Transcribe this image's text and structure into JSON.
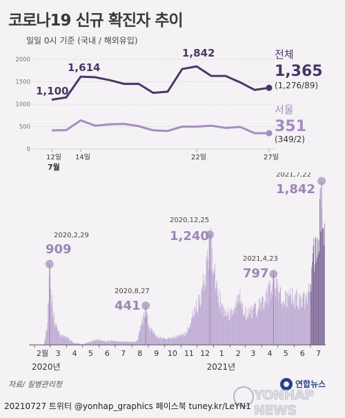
{
  "title": "코로나19 신규 확진자 추이",
  "subtitle": "일일 0시 기준 (국내 / 해외유입)",
  "source": "자료/ 질병관리청",
  "footer": "20210727  트위터 @yonhap_graphics  페이스북 tuney.kr/LeYN1",
  "logo": {
    "top": "연합뉴스",
    "bottom": "YONHAP NEWS"
  },
  "colors": {
    "national": "#4a3568",
    "seoul": "#a48cbf",
    "bars": "#bca9d2",
    "bars_dark": "#7c6797",
    "callout": "#9b86b5"
  },
  "chart_data": [
    {
      "type": "line",
      "ylim": [
        0,
        2000
      ],
      "yticks": [
        "2000",
        "1500",
        "1000",
        "500",
        "0"
      ],
      "x": [
        12,
        13,
        14,
        15,
        16,
        17,
        18,
        19,
        20,
        21,
        22,
        23,
        24,
        25,
        26,
        27
      ],
      "xtick_labels": [
        {
          "x": 12,
          "label": "12일"
        },
        {
          "x": 14,
          "label": "14일"
        },
        {
          "x": 22,
          "label": "22일"
        },
        {
          "x": 27,
          "label": "27일"
        }
      ],
      "month_label": "7월",
      "series": [
        {
          "name": "전체",
          "values": [
            1100,
            1150,
            1614,
            1600,
            1536,
            1452,
            1454,
            1252,
            1278,
            1784,
            1842,
            1630,
            1629,
            1487,
            1318,
            1365
          ],
          "latest": "1,365",
          "latest_detail": "(1,276/89)"
        },
        {
          "name": "서울",
          "values": [
            416,
            422,
            638,
            520,
            550,
            560,
            509,
            417,
            401,
            500,
            498,
            520,
            470,
            493,
            354,
            351
          ],
          "latest": "351",
          "latest_detail": "(349/2)"
        }
      ],
      "annotations": [
        {
          "x": 12,
          "text": "1,100"
        },
        {
          "x": 14,
          "text": "1,614"
        },
        {
          "x": 22,
          "text": "1,842"
        }
      ]
    },
    {
      "type": "bar",
      "x_start": "2020-02-01",
      "x_end": "2021-07-27",
      "month_ticks": [
        "2월",
        "3",
        "4",
        "5",
        "6",
        "7",
        "8",
        "9",
        "10",
        "11",
        "12",
        "1",
        "2",
        "3",
        "4",
        "5",
        "6",
        "7"
      ],
      "year_labels": [
        "2020년",
        "2021년"
      ],
      "values_description_none": "",
      "profile": [
        [
          "2020-02-01",
          0
        ],
        [
          "2020-02-18",
          2
        ],
        [
          "2020-02-24",
          230
        ],
        [
          "2020-02-29",
          909
        ],
        [
          "2020-03-03",
          600
        ],
        [
          "2020-03-10",
          240
        ],
        [
          "2020-03-20",
          110
        ],
        [
          "2020-04-01",
          90
        ],
        [
          "2020-04-15",
          25
        ],
        [
          "2020-05-01",
          8
        ],
        [
          "2020-05-10",
          30
        ],
        [
          "2020-05-28",
          65
        ],
        [
          "2020-06-15",
          45
        ],
        [
          "2020-07-01",
          50
        ],
        [
          "2020-07-20",
          40
        ],
        [
          "2020-08-10",
          40
        ],
        [
          "2020-08-15",
          160
        ],
        [
          "2020-08-20",
          300
        ],
        [
          "2020-08-27",
          441
        ],
        [
          "2020-09-03",
          200
        ],
        [
          "2020-09-15",
          110
        ],
        [
          "2020-10-01",
          75
        ],
        [
          "2020-10-15",
          90
        ],
        [
          "2020-11-01",
          120
        ],
        [
          "2020-11-10",
          140
        ],
        [
          "2020-11-20",
          330
        ],
        [
          "2020-12-01",
          500
        ],
        [
          "2020-12-10",
          680
        ],
        [
          "2020-12-18",
          1000
        ],
        [
          "2020-12-25",
          1240
        ],
        [
          "2021-01-01",
          950
        ],
        [
          "2021-01-10",
          640
        ],
        [
          "2021-01-20",
          400
        ],
        [
          "2021-02-05",
          380
        ],
        [
          "2021-02-17",
          600
        ],
        [
          "2021-03-01",
          410
        ],
        [
          "2021-03-15",
          420
        ],
        [
          "2021-04-01",
          500
        ],
        [
          "2021-04-15",
          700
        ],
        [
          "2021-04-23",
          797
        ],
        [
          "2021-05-10",
          550
        ],
        [
          "2021-05-25",
          620
        ],
        [
          "2021-06-10",
          560
        ],
        [
          "2021-06-25",
          600
        ],
        [
          "2021-07-01",
          800
        ],
        [
          "2021-07-07",
          1200
        ],
        [
          "2021-07-12",
          1100
        ],
        [
          "2021-07-16",
          1450
        ],
        [
          "2021-07-22",
          1842
        ],
        [
          "2021-07-24",
          1600
        ],
        [
          "2021-07-27",
          1365
        ]
      ],
      "annotations": [
        {
          "date": "2020-02-29",
          "label": "2020,2,29",
          "value": "909"
        },
        {
          "date": "2020-08-27",
          "label": "2020,8,27",
          "value": "441"
        },
        {
          "date": "2020-12-25",
          "label": "2020,12,25",
          "value": "1,240"
        },
        {
          "date": "2021-04-23",
          "label": "2021,4,23",
          "value": "797"
        },
        {
          "date": "2021-07-22",
          "label": "2021,7,22",
          "value": "1,842"
        }
      ],
      "ylim": [
        0,
        1900
      ]
    }
  ]
}
